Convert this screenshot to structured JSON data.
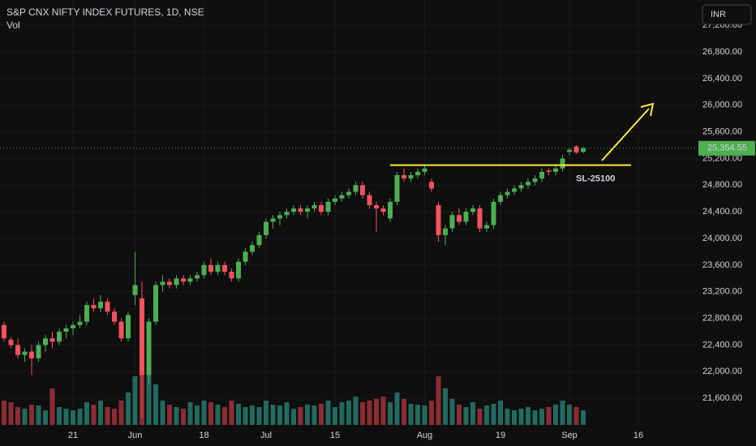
{
  "chart_data": {
    "type": "candlestick",
    "title": "S&P CNX NIFTY INDEX FUTURES, 1D, NSE",
    "volume_label": "Vol",
    "currency": "INR",
    "ylim": [
      21200,
      27580
    ],
    "yticks": [
      {
        "value": 21600,
        "label": "21,600.00"
      },
      {
        "value": 22000,
        "label": "22,000.00"
      },
      {
        "value": 22400,
        "label": "22,400.00"
      },
      {
        "value": 22800,
        "label": "22,800.00"
      },
      {
        "value": 23200,
        "label": "23,200.00"
      },
      {
        "value": 23600,
        "label": "23,600.00"
      },
      {
        "value": 24000,
        "label": "24,000.00"
      },
      {
        "value": 24400,
        "label": "24,400.00"
      },
      {
        "value": 24800,
        "label": "24,800.00"
      },
      {
        "value": 25200,
        "label": "25,200.00"
      },
      {
        "value": 25600,
        "label": "25,600.00"
      },
      {
        "value": 26000,
        "label": "26,000.00"
      },
      {
        "value": 26400,
        "label": "26,400.00"
      },
      {
        "value": 26800,
        "label": "26,800.00"
      },
      {
        "value": 27200,
        "label": "27,200.00"
      }
    ],
    "xticks": [
      {
        "value": 10,
        "label": "21"
      },
      {
        "value": 19,
        "label": "Jun"
      },
      {
        "value": 29,
        "label": "18"
      },
      {
        "value": 38,
        "label": "Jul"
      },
      {
        "value": 48,
        "label": "15"
      },
      {
        "value": 61,
        "label": "Aug"
      },
      {
        "value": 72,
        "label": "19"
      },
      {
        "value": 82,
        "label": "Sep"
      },
      {
        "value": 92,
        "label": "16"
      }
    ],
    "up_color": "#4caf50",
    "down_color": "#f7525f",
    "up_volume_color": "#22695f",
    "down_volume_color": "#8c2c33",
    "open": [
      22700,
      22480,
      22400,
      22250,
      22300,
      22200,
      22400,
      22500,
      22450,
      22600,
      22650,
      22700,
      22750,
      23000,
      22950,
      23050,
      22900,
      22750,
      22500,
      23150,
      23100,
      21950,
      22750,
      23300,
      23350,
      23300,
      23400,
      23350,
      23400,
      23450,
      23600,
      23500,
      23600,
      23500,
      23400,
      23650,
      23800,
      23900,
      24050,
      24250,
      24300,
      24350,
      24400,
      24450,
      24400,
      24450,
      24500,
      24400,
      24550,
      24600,
      24650,
      24700,
      24800,
      24650,
      24500,
      24450,
      24300,
      24550,
      24950,
      24900,
      24950,
      25000,
      24850,
      24500,
      24050,
      24150,
      24350,
      24250,
      24400,
      24450,
      24150,
      24200,
      24550,
      24650,
      24700,
      24750,
      24800,
      24850,
      24900,
      25020,
      25000,
      25050,
      25300,
      25380,
      25300
    ],
    "high": [
      22750,
      22520,
      22500,
      22350,
      22400,
      22450,
      22550,
      22600,
      22650,
      22700,
      22750,
      22850,
      23050,
      23100,
      23150,
      23100,
      22950,
      22800,
      22900,
      23800,
      23350,
      22800,
      23350,
      23450,
      23400,
      23450,
      23450,
      23450,
      23500,
      23650,
      23700,
      23650,
      23650,
      23550,
      23700,
      23850,
      23950,
      24100,
      24300,
      24350,
      24400,
      24450,
      24500,
      24500,
      24500,
      24550,
      24550,
      24600,
      24650,
      24700,
      24750,
      24850,
      24850,
      24700,
      24550,
      24500,
      24600,
      25000,
      25050,
      25000,
      25050,
      25100,
      24900,
      24550,
      24200,
      24400,
      24450,
      24450,
      24500,
      24500,
      24250,
      24600,
      24700,
      24750,
      24800,
      24850,
      24900,
      24950,
      25050,
      25050,
      25100,
      25250,
      25350,
      25400,
      25380
    ],
    "low": [
      22450,
      22350,
      22200,
      22150,
      21950,
      22150,
      22300,
      22350,
      22400,
      22500,
      22550,
      22650,
      22700,
      22900,
      22900,
      22850,
      22700,
      22450,
      22450,
      23000,
      21300,
      21800,
      22700,
      23200,
      23250,
      23250,
      23300,
      23300,
      23350,
      23400,
      23450,
      23450,
      23450,
      23350,
      23350,
      23600,
      23750,
      23850,
      24000,
      24150,
      24200,
      24300,
      24350,
      24350,
      24300,
      24400,
      24350,
      24350,
      24500,
      24550,
      24600,
      24650,
      24600,
      24450,
      24100,
      24350,
      24250,
      24500,
      24850,
      24850,
      24900,
      24950,
      24700,
      23950,
      23900,
      24100,
      24200,
      24200,
      24350,
      24100,
      24100,
      24150,
      24500,
      24600,
      24650,
      24700,
      24750,
      24800,
      24850,
      24950,
      24950,
      25000,
      25250,
      25270,
      25280
    ],
    "close": [
      22500,
      22400,
      22250,
      22300,
      22200,
      22400,
      22500,
      22450,
      22600,
      22650,
      22700,
      22750,
      23000,
      22950,
      23050,
      22900,
      22750,
      22500,
      22850,
      23300,
      21950,
      22750,
      23300,
      23350,
      23300,
      23400,
      23350,
      23400,
      23450,
      23600,
      23500,
      23600,
      23500,
      23400,
      23650,
      23800,
      23900,
      24050,
      24250,
      24300,
      24350,
      24400,
      24450,
      24400,
      24450,
      24500,
      24400,
      24550,
      24600,
      24650,
      24700,
      24800,
      24650,
      24500,
      24450,
      24400,
      24550,
      24950,
      24900,
      24950,
      25000,
      25050,
      24750,
      24050,
      24150,
      24350,
      24250,
      24400,
      24450,
      24150,
      24200,
      24550,
      24650,
      24700,
      24750,
      24800,
      24850,
      24900,
      25000,
      25000,
      25050,
      25200,
      25330,
      25290,
      25354.55
    ],
    "volume": [
      30,
      28,
      22,
      20,
      25,
      24,
      18,
      45,
      22,
      20,
      18,
      20,
      28,
      25,
      30,
      22,
      20,
      30,
      40,
      60,
      85,
      70,
      50,
      30,
      25,
      22,
      20,
      28,
      24,
      30,
      28,
      25,
      22,
      30,
      26,
      22,
      24,
      22,
      30,
      25,
      24,
      28,
      20,
      22,
      25,
      24,
      26,
      30,
      22,
      28,
      30,
      35,
      28,
      30,
      32,
      35,
      28,
      40,
      32,
      26,
      25,
      24,
      30,
      60,
      45,
      32,
      25,
      22,
      28,
      20,
      24,
      26,
      30,
      20,
      18,
      20,
      22,
      18,
      20,
      22,
      25,
      30,
      25,
      22,
      18
    ],
    "y2lim": [
      0,
      100
    ],
    "last_price_label": "25,354.55",
    "level": 25100,
    "level_color": "#ffeb3b",
    "annotation": "SL-25100"
  }
}
